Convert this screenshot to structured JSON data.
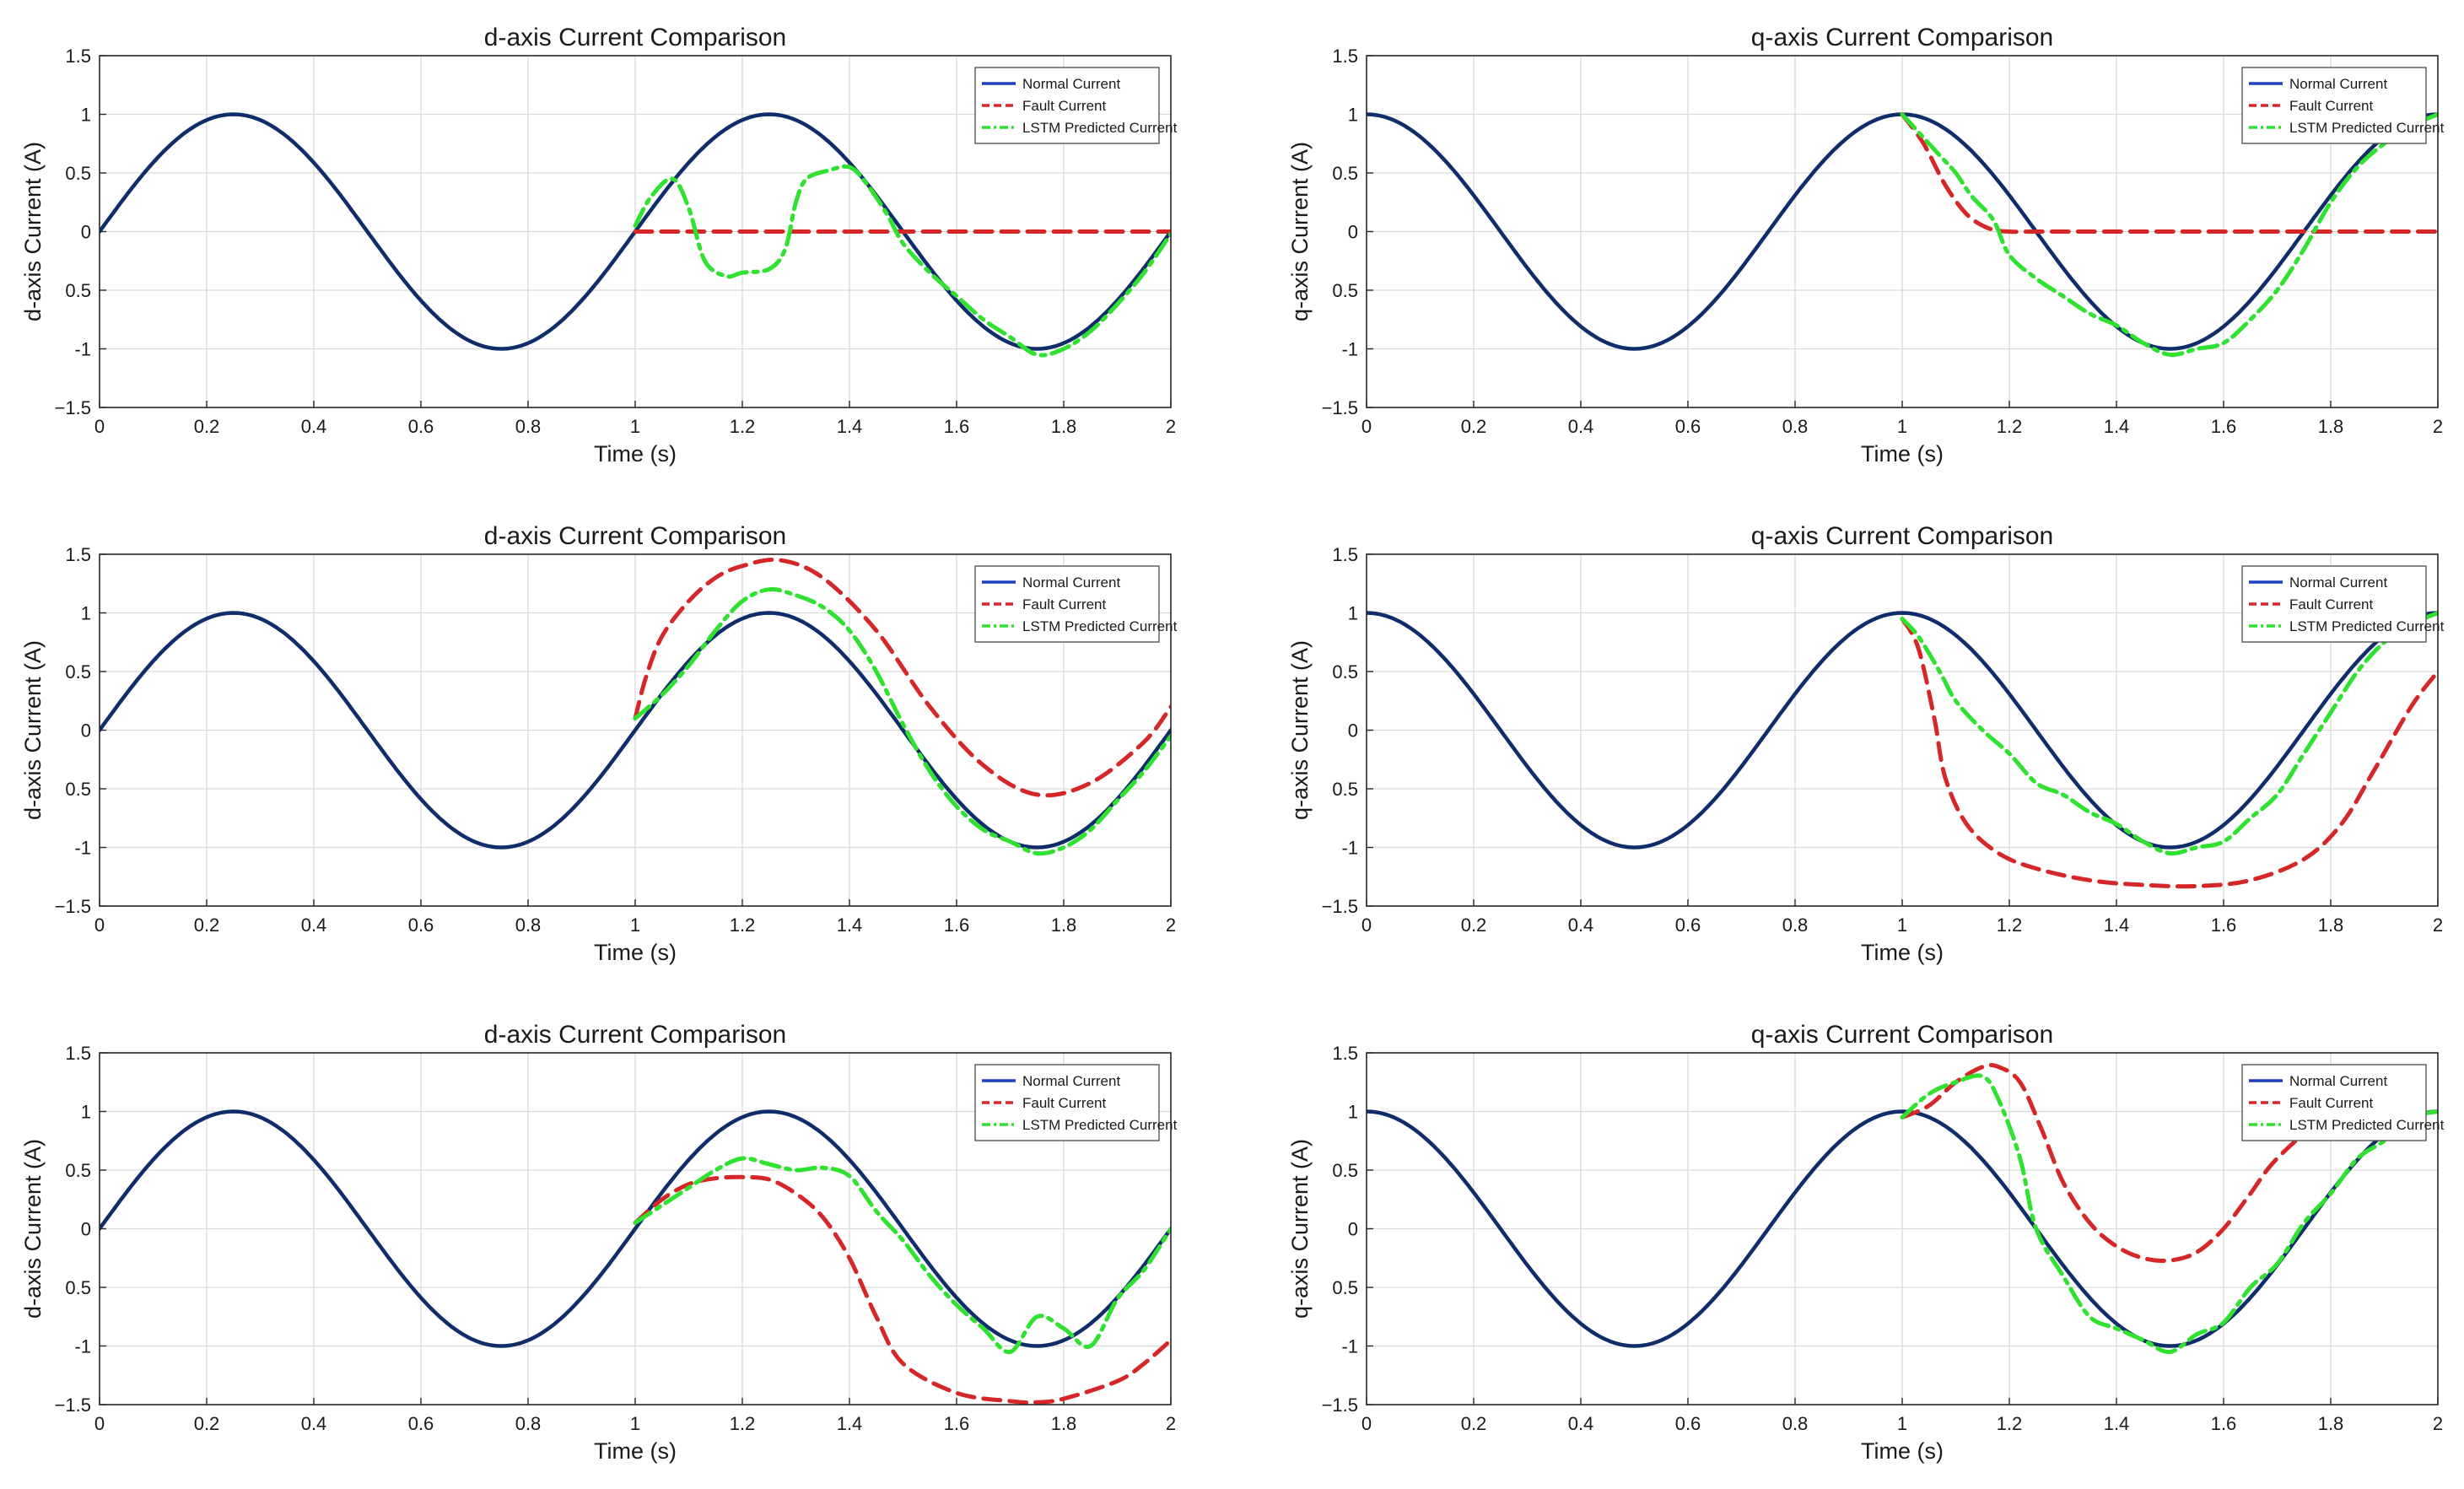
{
  "colors": {
    "normal": "#0f2d6b",
    "fault": "#d62728",
    "lstm": "#2fe22f",
    "legend_normal": "#1f3fbf"
  },
  "chart_data": [
    {
      "type": "line",
      "title": "d-axis  Current Comparison",
      "xlabel": "Time (s)",
      "ylabel": "d-axis  Current (A)",
      "xlim": [
        0,
        2
      ],
      "ylim": [
        -1.5,
        1.5
      ],
      "grid": true,
      "legend_position": "top-right",
      "xticks": [
        "0",
        "0.2",
        "0.4",
        "0.6",
        "0.8",
        "1",
        "1.2",
        "1.4",
        "1.6",
        "1.8",
        "2"
      ],
      "yticks": [
        "1.5",
        "1",
        "0.5",
        "0",
        "0.5",
        "-1",
        "−1.5"
      ],
      "legend": [
        "Normal Current",
        "Fault Current",
        "LSTM Predicted Current"
      ],
      "series": [
        {
          "name": "Normal Current",
          "function": "sin(2πt)",
          "t": [
            0,
            2
          ]
        },
        {
          "name": "Fault Current",
          "x": [
            1,
            2
          ],
          "y": [
            0,
            0
          ]
        },
        {
          "name": "LSTM Predicted Current",
          "x": [
            1,
            1.03,
            1.07,
            1.1,
            1.13,
            1.17,
            1.2,
            1.25,
            1.28,
            1.3,
            1.32,
            1.36,
            1.4,
            1.43,
            1.47,
            1.5,
            1.55,
            1.6,
            1.65,
            1.7,
            1.75,
            1.8,
            1.85,
            1.9,
            1.95,
            2
          ],
          "y": [
            0.05,
            0.3,
            0.45,
            0.2,
            -0.25,
            -0.38,
            -0.35,
            -0.32,
            -0.15,
            0.25,
            0.45,
            0.52,
            0.55,
            0.42,
            0.15,
            -0.1,
            -0.35,
            -0.55,
            -0.75,
            -0.9,
            -1.05,
            -1.0,
            -0.85,
            -0.62,
            -0.35,
            -0.02
          ]
        }
      ]
    },
    {
      "type": "line",
      "title": "q-axis  Current Comparison",
      "xlabel": "Time (s)",
      "ylabel": "q-axis  Current (A)",
      "xlim": [
        0,
        2
      ],
      "ylim": [
        -1.5,
        1.5
      ],
      "grid": true,
      "legend_position": "top-right",
      "xticks": [
        "0",
        "0.2",
        "0.4",
        "0.6",
        "0.8",
        "1",
        "1.2",
        "1.4",
        "1.6",
        "1.8",
        "2"
      ],
      "yticks": [
        "1.5",
        "1",
        "0.5",
        "0",
        "0.5",
        "-1",
        "−1.5"
      ],
      "legend": [
        "Normal Current",
        "Fault Current",
        "LSTM Predicted Current"
      ],
      "series": [
        {
          "name": "Normal Current",
          "function": "cos(2πt)",
          "t": [
            0,
            2
          ]
        },
        {
          "name": "Fault Current",
          "x": [
            1,
            1.04,
            1.08,
            1.12,
            1.16,
            1.2,
            1.3,
            2
          ],
          "y": [
            1,
            0.75,
            0.4,
            0.15,
            0.03,
            0,
            0,
            0
          ]
        },
        {
          "name": "LSTM Predicted Current",
          "x": [
            1,
            1.03,
            1.07,
            1.1,
            1.13,
            1.17,
            1.2,
            1.25,
            1.3,
            1.35,
            1.4,
            1.45,
            1.5,
            1.55,
            1.6,
            1.65,
            1.7,
            1.75,
            1.8,
            1.85,
            1.9,
            1.95,
            2
          ],
          "y": [
            1,
            0.85,
            0.65,
            0.5,
            0.3,
            0.1,
            -0.2,
            -0.4,
            -0.55,
            -0.7,
            -0.8,
            -0.95,
            -1.05,
            -1.0,
            -0.95,
            -0.75,
            -0.5,
            -0.15,
            0.25,
            0.55,
            0.75,
            0.9,
            1.0
          ]
        }
      ]
    },
    {
      "type": "line",
      "title": "d-axis  Current Comparison",
      "xlabel": "Time (s)",
      "ylabel": "d-axis  Current (A)",
      "xlim": [
        0,
        2
      ],
      "ylim": [
        -1.5,
        1.5
      ],
      "grid": true,
      "legend_position": "top-right",
      "xticks": [
        "0",
        "0.2",
        "0.4",
        "0.6",
        "0.8",
        "1",
        "1.2",
        "1.4",
        "1.6",
        "1.8",
        "2"
      ],
      "yticks": [
        "1.5",
        "1",
        "0.5",
        "0",
        "0.5",
        "-1",
        "−1.5"
      ],
      "legend": [
        "Normal Current",
        "Fault Current",
        "LSTM Predicted Current"
      ],
      "series": [
        {
          "name": "Normal Current",
          "function": "sin(2πt)",
          "t": [
            0,
            2
          ]
        },
        {
          "name": "Fault Current",
          "x": [
            1,
            1.02,
            1.05,
            1.1,
            1.15,
            1.2,
            1.27,
            1.35,
            1.45,
            1.55,
            1.65,
            1.75,
            1.85,
            1.95,
            2
          ],
          "y": [
            0.1,
            0.45,
            0.8,
            1.1,
            1.3,
            1.4,
            1.45,
            1.3,
            0.85,
            0.2,
            -0.3,
            -0.55,
            -0.45,
            -0.1,
            0.2
          ]
        },
        {
          "name": "LSTM Predicted Current",
          "x": [
            1,
            1.05,
            1.1,
            1.15,
            1.2,
            1.25,
            1.3,
            1.35,
            1.4,
            1.45,
            1.5,
            1.55,
            1.6,
            1.65,
            1.7,
            1.75,
            1.8,
            1.85,
            1.9,
            1.95,
            2
          ],
          "y": [
            0.1,
            0.3,
            0.55,
            0.85,
            1.1,
            1.2,
            1.15,
            1.05,
            0.85,
            0.5,
            0.05,
            -0.35,
            -0.65,
            -0.85,
            -0.95,
            -1.05,
            -1.0,
            -0.85,
            -0.6,
            -0.35,
            -0.05
          ]
        }
      ]
    },
    {
      "type": "line",
      "title": "q-axis  Current Comparison",
      "xlabel": "Time (s)",
      "ylabel": "q-axis  Current (A)",
      "xlim": [
        0,
        2
      ],
      "ylim": [
        -1.5,
        1.5
      ],
      "grid": true,
      "legend_position": "top-right",
      "xticks": [
        "0",
        "0.2",
        "0.4",
        "0.6",
        "0.8",
        "1",
        "1.2",
        "1.4",
        "1.6",
        "1.8",
        "2"
      ],
      "yticks": [
        "1.5",
        "1",
        "0.5",
        "0",
        "0.5",
        "-1",
        "−1.5"
      ],
      "legend": [
        "Normal Current",
        "Fault Current",
        "LSTM Predicted Current"
      ],
      "series": [
        {
          "name": "Normal Current",
          "function": "cos(2πt)",
          "t": [
            0,
            2
          ]
        },
        {
          "name": "Fault Current",
          "x": [
            1,
            1.03,
            1.06,
            1.08,
            1.12,
            1.18,
            1.25,
            1.35,
            1.45,
            1.55,
            1.65,
            1.75,
            1.82,
            1.88,
            1.95,
            2
          ],
          "y": [
            0.95,
            0.7,
            0.1,
            -0.4,
            -0.8,
            -1.05,
            -1.18,
            -1.28,
            -1.32,
            -1.33,
            -1.28,
            -1.1,
            -0.8,
            -0.35,
            0.2,
            0.5
          ]
        },
        {
          "name": "LSTM Predicted Current",
          "x": [
            1,
            1.03,
            1.07,
            1.1,
            1.15,
            1.2,
            1.25,
            1.3,
            1.35,
            1.4,
            1.45,
            1.5,
            1.55,
            1.6,
            1.65,
            1.7,
            1.75,
            1.8,
            1.85,
            1.9,
            1.95,
            2
          ],
          "y": [
            0.95,
            0.8,
            0.5,
            0.25,
            0.0,
            -0.2,
            -0.45,
            -0.55,
            -0.7,
            -0.8,
            -0.95,
            -1.05,
            -1.0,
            -0.95,
            -0.75,
            -0.55,
            -0.2,
            0.15,
            0.5,
            0.75,
            0.9,
            1.0
          ]
        }
      ]
    },
    {
      "type": "line",
      "title": "d-axis  Current Comparison",
      "xlabel": "Time (s)",
      "ylabel": "d-axis  Current (A)",
      "xlim": [
        0,
        2
      ],
      "ylim": [
        -1.5,
        1.5
      ],
      "grid": true,
      "legend_position": "top-right",
      "xticks": [
        "0",
        "0.2",
        "0.4",
        "0.6",
        "0.8",
        "1",
        "1.2",
        "1.4",
        "1.6",
        "1.8",
        "2"
      ],
      "yticks": [
        "1.5",
        "1",
        "0.5",
        "0",
        "0.5",
        "-1",
        "−1.5"
      ],
      "legend": [
        "Normal Current",
        "Fault Current",
        "LSTM Predicted Current"
      ],
      "series": [
        {
          "name": "Normal Current",
          "function": "sin(2πt)",
          "t": [
            0,
            2
          ]
        },
        {
          "name": "Fault Current",
          "x": [
            1,
            1.05,
            1.1,
            1.15,
            1.2,
            1.25,
            1.3,
            1.35,
            1.4,
            1.45,
            1.5,
            1.6,
            1.7,
            1.75,
            1.8,
            1.9,
            1.95,
            2
          ],
          "y": [
            0.05,
            0.25,
            0.38,
            0.43,
            0.44,
            0.42,
            0.3,
            0.1,
            -0.25,
            -0.75,
            -1.15,
            -1.4,
            -1.47,
            -1.48,
            -1.45,
            -1.3,
            -1.15,
            -0.95
          ]
        },
        {
          "name": "LSTM Predicted Current",
          "x": [
            1,
            1.05,
            1.1,
            1.15,
            1.2,
            1.25,
            1.3,
            1.35,
            1.4,
            1.45,
            1.5,
            1.55,
            1.6,
            1.65,
            1.7,
            1.75,
            1.8,
            1.85,
            1.9,
            1.95,
            2
          ],
          "y": [
            0.05,
            0.2,
            0.35,
            0.5,
            0.6,
            0.55,
            0.5,
            0.52,
            0.45,
            0.15,
            -0.1,
            -0.4,
            -0.65,
            -0.85,
            -1.05,
            -0.75,
            -0.85,
            -1.0,
            -0.6,
            -0.35,
            0.0
          ]
        }
      ]
    },
    {
      "type": "line",
      "title": "q-axis  Current Comparison",
      "xlabel": "Time (s)",
      "ylabel": "q-axis  Current (A)",
      "xlim": [
        0,
        2
      ],
      "ylim": [
        -1.5,
        1.5
      ],
      "grid": true,
      "legend_position": "top-right",
      "xticks": [
        "0",
        "0.2",
        "0.4",
        "0.6",
        "0.8",
        "1",
        "1.2",
        "1.4",
        "1.6",
        "1.8",
        "2"
      ],
      "yticks": [
        "1.5",
        "1",
        "0.5",
        "0",
        "0.5",
        "-1",
        "−1.5"
      ],
      "legend": [
        "Normal Current",
        "Fault Current",
        "LSTM Predicted Current"
      ],
      "series": [
        {
          "name": "Normal Current",
          "function": "cos(2πt)",
          "t": [
            0,
            2
          ]
        },
        {
          "name": "Fault Current",
          "x": [
            1,
            1.05,
            1.1,
            1.15,
            1.18,
            1.22,
            1.26,
            1.3,
            1.35,
            1.4,
            1.45,
            1.5,
            1.55,
            1.6,
            1.65,
            1.7,
            1.8,
            1.85
          ],
          "y": [
            0.95,
            1.05,
            1.25,
            1.38,
            1.38,
            1.25,
            0.85,
            0.4,
            0.05,
            -0.15,
            -0.25,
            -0.27,
            -0.2,
            0.0,
            0.3,
            0.6,
            1.0,
            1.1
          ]
        },
        {
          "name": "LSTM Predicted Current",
          "x": [
            1,
            1.05,
            1.1,
            1.15,
            1.18,
            1.22,
            1.25,
            1.3,
            1.35,
            1.4,
            1.45,
            1.5,
            1.55,
            1.6,
            1.65,
            1.7,
            1.75,
            1.8,
            1.85,
            1.9,
            1.95,
            2
          ],
          "y": [
            0.95,
            1.15,
            1.25,
            1.3,
            1.1,
            0.6,
            0.0,
            -0.4,
            -0.75,
            -0.85,
            -0.95,
            -1.05,
            -0.9,
            -0.8,
            -0.5,
            -0.3,
            0.05,
            0.3,
            0.6,
            0.75,
            0.95,
            1.0
          ]
        }
      ]
    }
  ]
}
